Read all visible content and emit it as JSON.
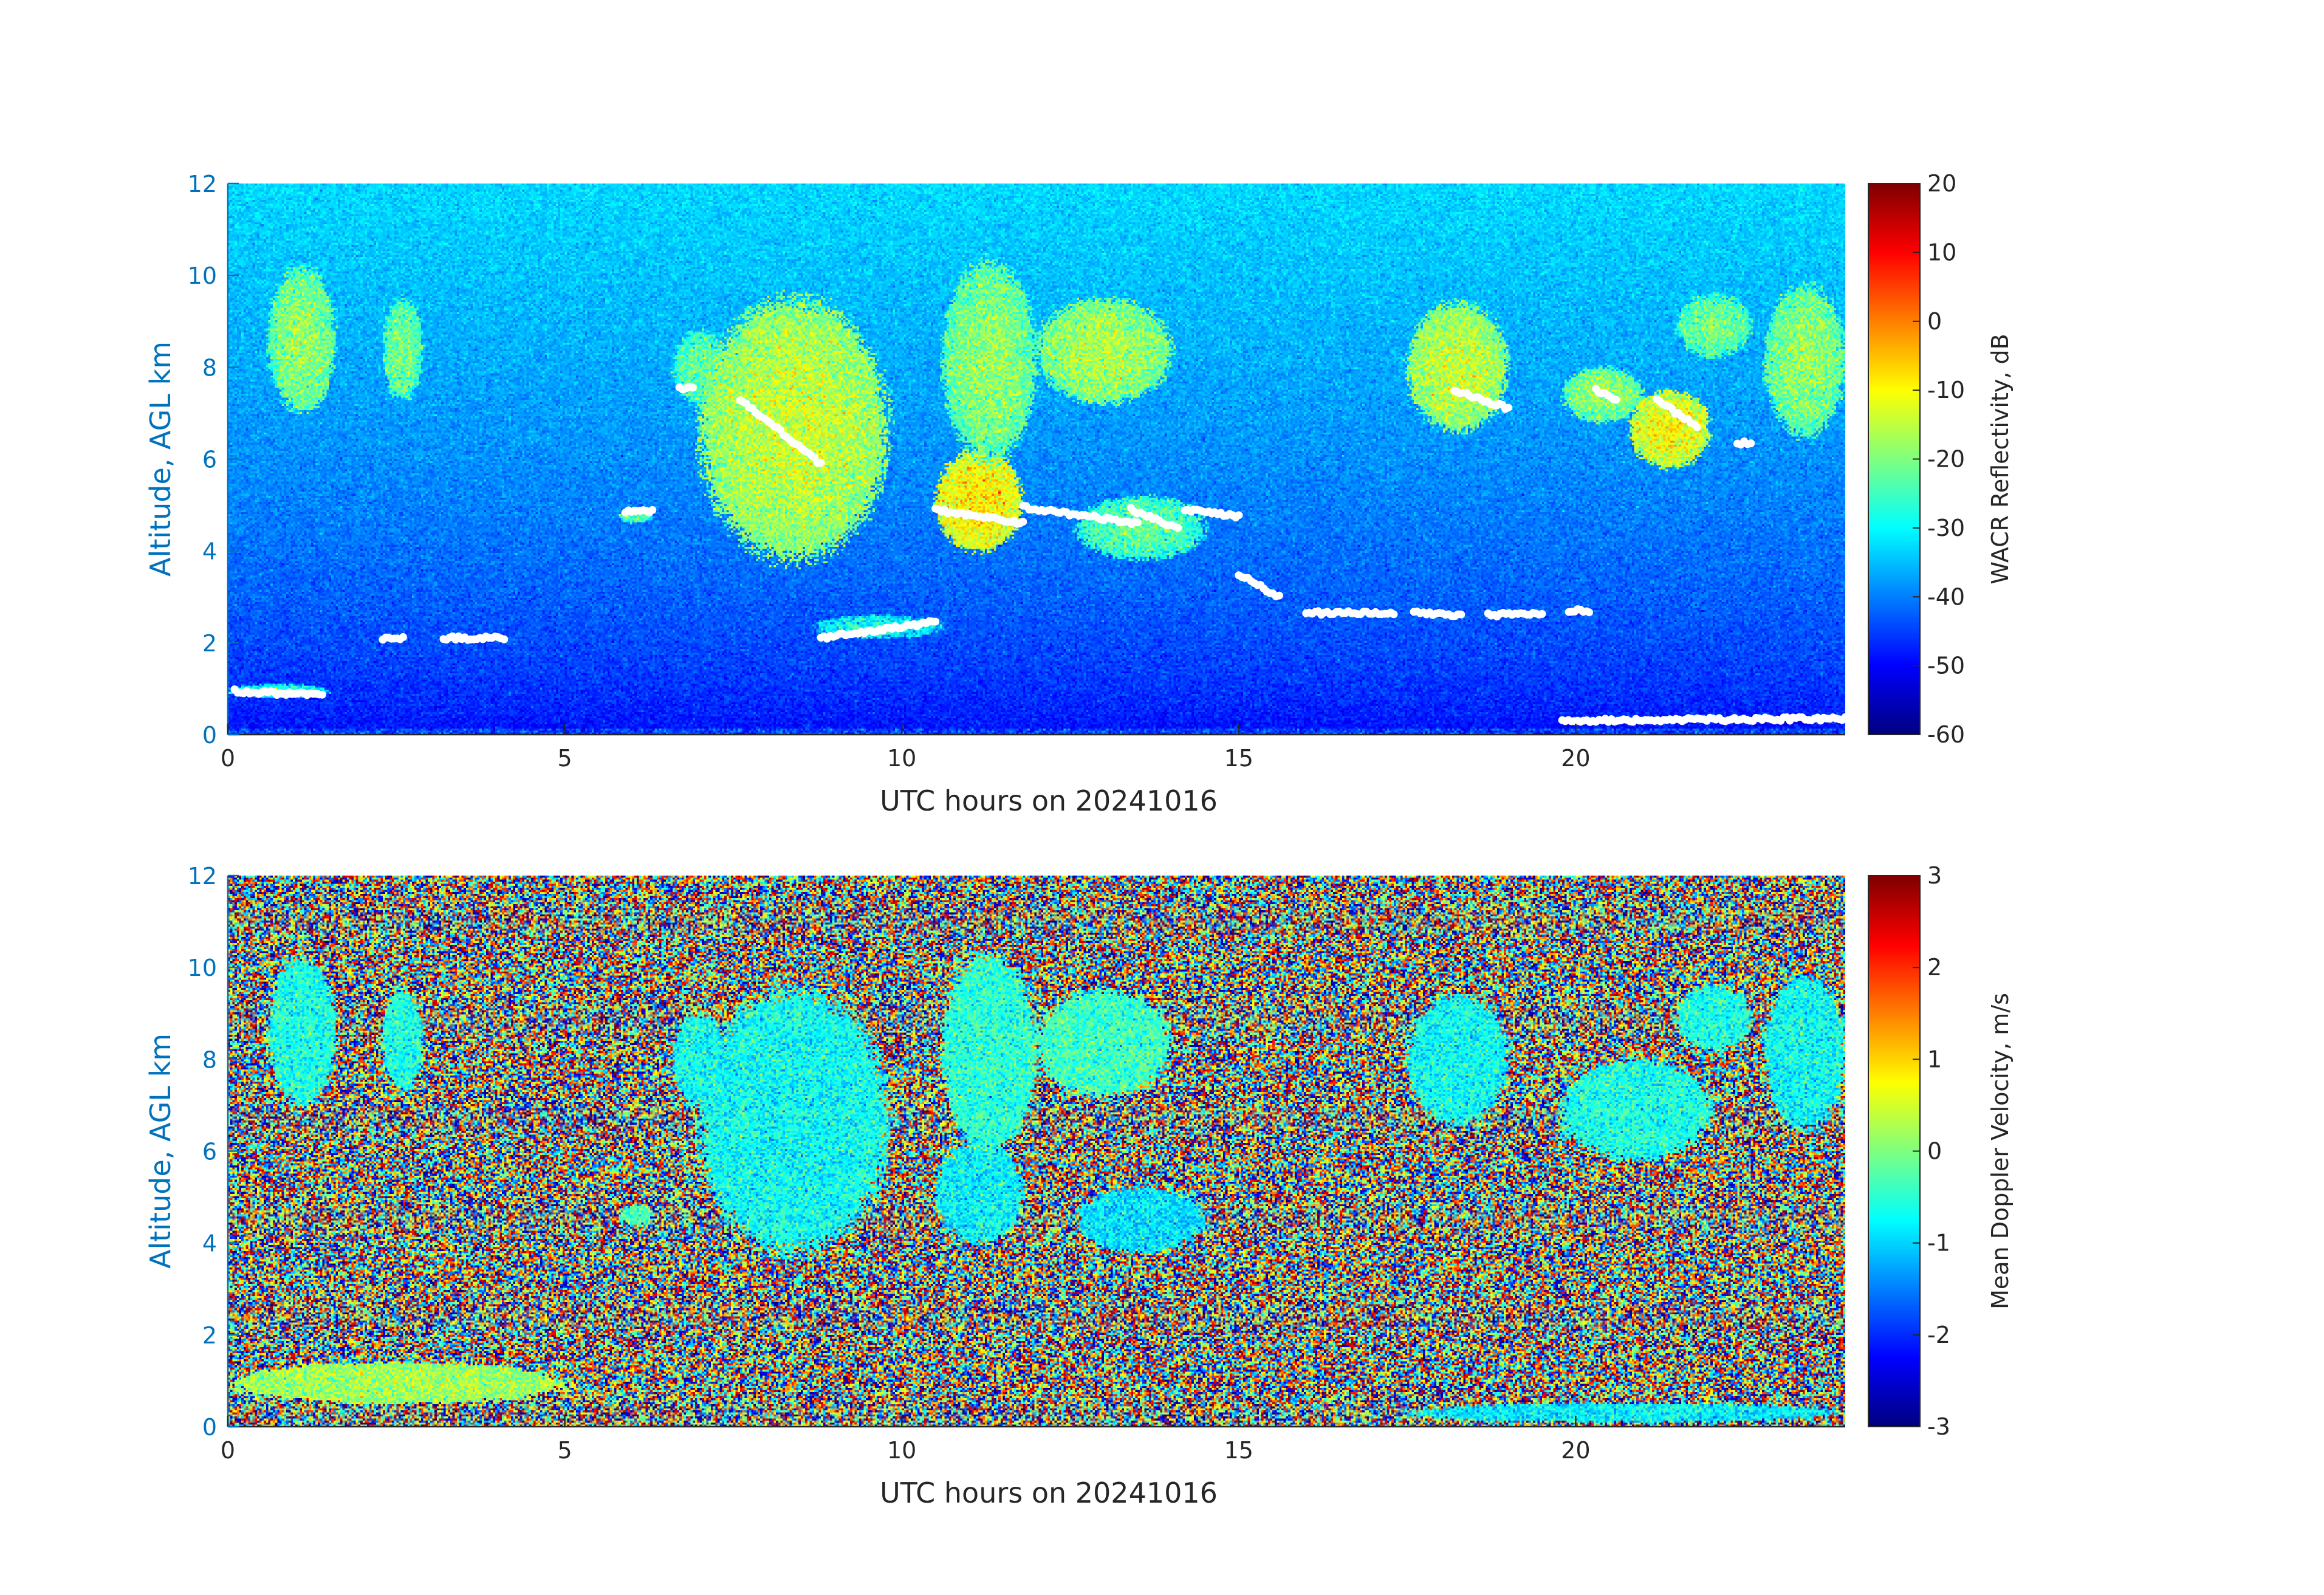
{
  "colors": {
    "y_axis_text": "#0072BD",
    "x_axis_text": "#262626",
    "axis_line": "#262626",
    "ice_marker": "#ffffff"
  },
  "chart_data": [
    {
      "type": "heatmap",
      "panel": "reflectivity",
      "xlabel": "UTC hours on 20241016",
      "ylabel": "Altitude, AGL km",
      "xlim": [
        0,
        24
      ],
      "ylim": [
        0,
        12
      ],
      "xticks": [
        "0",
        "5",
        "10",
        "15",
        "20"
      ],
      "yticks": [
        "0",
        "2",
        "4",
        "6",
        "8",
        "10",
        "12"
      ],
      "colormap": "jet",
      "colorbar": {
        "label": "WACR Reflectivity, dB",
        "range": [
          -60,
          20
        ],
        "ticks": [
          "20",
          "10",
          "0",
          "-10",
          "-20",
          "-30",
          "-40",
          "-50",
          "-60"
        ]
      },
      "background_model": "noise floor rising with altitude: about -50 dB near 0 km to about -33 dB at 12 km",
      "cloud_features": [
        {
          "x": [
            0.6,
            1.6
          ],
          "y": [
            7.0,
            10.2
          ],
          "value_db": -18
        },
        {
          "x": [
            2.3,
            2.9
          ],
          "y": [
            7.3,
            9.5
          ],
          "value_db": -20
        },
        {
          "x": [
            6.6,
            7.4
          ],
          "y": [
            7.2,
            8.8
          ],
          "value_db": -22
        },
        {
          "x": [
            7.0,
            9.8
          ],
          "y": [
            3.8,
            9.5
          ],
          "value_db": -14
        },
        {
          "x": [
            10.5,
            11.8
          ],
          "y": [
            4.0,
            6.2
          ],
          "value_db": -8
        },
        {
          "x": [
            10.6,
            12.0
          ],
          "y": [
            6.0,
            10.3
          ],
          "value_db": -18
        },
        {
          "x": [
            12.0,
            14.0
          ],
          "y": [
            7.2,
            9.5
          ],
          "value_db": -16
        },
        {
          "x": [
            12.6,
            14.5
          ],
          "y": [
            3.8,
            5.2
          ],
          "value_db": -22
        },
        {
          "x": [
            17.5,
            19.0
          ],
          "y": [
            6.6,
            9.4
          ],
          "value_db": -14
        },
        {
          "x": [
            19.8,
            21.0
          ],
          "y": [
            6.8,
            8.0
          ],
          "value_db": -18
        },
        {
          "x": [
            20.8,
            22.0
          ],
          "y": [
            5.8,
            7.5
          ],
          "value_db": -10
        },
        {
          "x": [
            21.5,
            22.6
          ],
          "y": [
            8.2,
            9.6
          ],
          "value_db": -20
        },
        {
          "x": [
            22.8,
            24.0
          ],
          "y": [
            6.5,
            9.8
          ],
          "value_db": -18
        },
        {
          "x": [
            8.7,
            10.6
          ],
          "y": [
            2.1,
            2.6
          ],
          "value_db": -28
        },
        {
          "x": [
            5.8,
            6.3
          ],
          "y": [
            4.6,
            4.9
          ],
          "value_db": -22
        },
        {
          "x": [
            0.0,
            1.5
          ],
          "y": [
            0.8,
            1.1
          ],
          "value_db": -26
        }
      ],
      "white_marker_tracks": [
        {
          "x": [
            0.1,
            1.4
          ],
          "y": [
            0.95,
            0.85
          ]
        },
        {
          "x": [
            2.3,
            2.6
          ],
          "y": [
            2.1,
            2.1
          ]
        },
        {
          "x": [
            3.2,
            4.1
          ],
          "y": [
            2.1,
            2.1
          ]
        },
        {
          "x": [
            5.9,
            6.3
          ],
          "y": [
            4.85,
            4.85
          ]
        },
        {
          "x": [
            6.7,
            6.9
          ],
          "y": [
            7.55,
            7.55
          ]
        },
        {
          "x": [
            7.6,
            8.8
          ],
          "y": [
            7.3,
            5.9
          ]
        },
        {
          "x": [
            8.8,
            10.5
          ],
          "y": [
            2.1,
            2.45
          ]
        },
        {
          "x": [
            10.5,
            11.8
          ],
          "y": [
            4.9,
            4.6
          ]
        },
        {
          "x": [
            11.8,
            13.5
          ],
          "y": [
            4.95,
            4.6
          ]
        },
        {
          "x": [
            13.4,
            14.1
          ],
          "y": [
            4.9,
            4.5
          ]
        },
        {
          "x": [
            14.2,
            15.0
          ],
          "y": [
            4.9,
            4.75
          ]
        },
        {
          "x": [
            15.0,
            15.6
          ],
          "y": [
            3.5,
            3.0
          ]
        },
        {
          "x": [
            16.0,
            17.3
          ],
          "y": [
            2.65,
            2.65
          ]
        },
        {
          "x": [
            17.6,
            18.3
          ],
          "y": [
            2.65,
            2.6
          ]
        },
        {
          "x": [
            18.7,
            19.5
          ],
          "y": [
            2.6,
            2.65
          ]
        },
        {
          "x": [
            19.9,
            20.2
          ],
          "y": [
            2.7,
            2.7
          ]
        },
        {
          "x": [
            18.2,
            19.0
          ],
          "y": [
            7.5,
            7.1
          ]
        },
        {
          "x": [
            20.3,
            20.6
          ],
          "y": [
            7.5,
            7.3
          ]
        },
        {
          "x": [
            21.2,
            21.8
          ],
          "y": [
            7.3,
            6.7
          ]
        },
        {
          "x": [
            22.4,
            22.6
          ],
          "y": [
            6.35,
            6.35
          ]
        },
        {
          "x": [
            19.8,
            24.0
          ],
          "y": [
            0.3,
            0.35
          ]
        }
      ]
    },
    {
      "type": "heatmap",
      "panel": "doppler_velocity",
      "xlabel": "UTC hours on 20241016",
      "ylabel": "Altitude, AGL km",
      "xlim": [
        0,
        24
      ],
      "ylim": [
        0,
        12
      ],
      "xticks": [
        "0",
        "5",
        "10",
        "15",
        "20"
      ],
      "yticks": [
        "0",
        "2",
        "4",
        "6",
        "8",
        "10",
        "12"
      ],
      "colormap": "jet",
      "colorbar": {
        "label": "Mean Doppler Velocity, m/s",
        "range": [
          -3,
          3
        ],
        "ticks": [
          "3",
          "2",
          "1",
          "0",
          "-1",
          "-2",
          "-3"
        ]
      },
      "background_model": "uniform random noise spanning -3 to 3 m/s",
      "cloud_features": [
        {
          "x": [
            0.6,
            1.6
          ],
          "y": [
            7.0,
            10.2
          ],
          "value_ms": -0.6
        },
        {
          "x": [
            2.3,
            2.9
          ],
          "y": [
            7.3,
            9.5
          ],
          "value_ms": -0.6
        },
        {
          "x": [
            6.6,
            7.4
          ],
          "y": [
            7.0,
            9.0
          ],
          "value_ms": -0.7
        },
        {
          "x": [
            7.0,
            9.8
          ],
          "y": [
            3.8,
            9.5
          ],
          "value_ms": -0.7
        },
        {
          "x": [
            10.5,
            11.8
          ],
          "y": [
            4.0,
            6.2
          ],
          "value_ms": -0.8
        },
        {
          "x": [
            10.6,
            12.0
          ],
          "y": [
            6.0,
            10.3
          ],
          "value_ms": -0.5
        },
        {
          "x": [
            12.0,
            14.0
          ],
          "y": [
            7.2,
            9.5
          ],
          "value_ms": -0.4
        },
        {
          "x": [
            12.6,
            14.5
          ],
          "y": [
            3.8,
            5.2
          ],
          "value_ms": -0.9
        },
        {
          "x": [
            17.5,
            19.0
          ],
          "y": [
            6.6,
            9.4
          ],
          "value_ms": -0.7
        },
        {
          "x": [
            19.8,
            22.0
          ],
          "y": [
            5.8,
            8.0
          ],
          "value_ms": -0.6
        },
        {
          "x": [
            21.5,
            22.6
          ],
          "y": [
            8.2,
            9.6
          ],
          "value_ms": -0.6
        },
        {
          "x": [
            22.8,
            24.0
          ],
          "y": [
            6.5,
            9.8
          ],
          "value_ms": -0.7
        },
        {
          "x": [
            5.8,
            6.3
          ],
          "y": [
            4.4,
            4.8
          ],
          "value_ms": -0.3
        },
        {
          "x": [
            0.0,
            5.0
          ],
          "y": [
            0.5,
            1.4
          ],
          "value_ms": 0.2
        },
        {
          "x": [
            17.5,
            24.0
          ],
          "y": [
            0.1,
            0.5
          ],
          "value_ms": -0.8
        }
      ]
    }
  ]
}
